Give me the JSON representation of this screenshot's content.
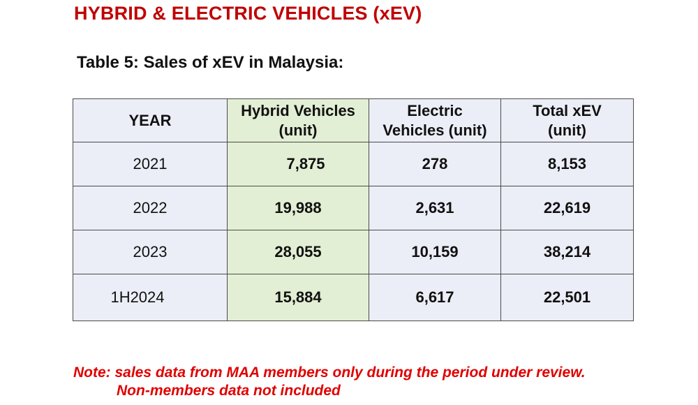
{
  "header": {
    "title": "HYBRID & ELECTRIC VEHICLES (xEV)",
    "table_caption": "Table 5: Sales of xEV in Malaysia:"
  },
  "table": {
    "columns": {
      "year": "YEAR",
      "hybrid_line1": "Hybrid Vehicles",
      "hybrid_line2": "(unit)",
      "ev_line1": "Electric",
      "ev_line2": "Vehicles (unit)",
      "total_line1": "Total xEV",
      "total_line2": "(unit)"
    },
    "rows": [
      {
        "year": "2021",
        "hybrid": "7,875",
        "electric": "278",
        "total": "8,153"
      },
      {
        "year": "2022",
        "hybrid": "19,988",
        "electric": "2,631",
        "total": "22,619"
      },
      {
        "year": "2023",
        "hybrid": "28,055",
        "electric": "10,159",
        "total": "38,214"
      },
      {
        "year": "1H2024",
        "hybrid": "15,884",
        "electric": "6,617",
        "total": "22,501"
      }
    ]
  },
  "note": {
    "line1": "Note: sales data from MAA members only during the period under review.",
    "line2": "Non-members data not included"
  },
  "colors": {
    "title": "#c00000",
    "note": "#e00000",
    "cell_background": "#eceef7",
    "highlight_column": "#e3efd4"
  }
}
